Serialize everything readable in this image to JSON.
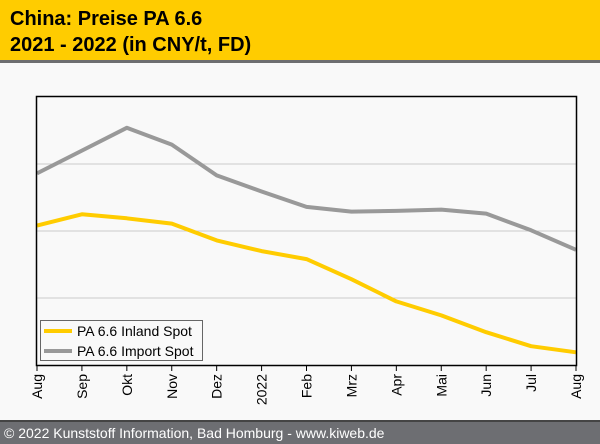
{
  "header": {
    "title_line1": "China: Preise PA 6.6",
    "title_line2": "2021 - 2022 (in CNY/t, FD)"
  },
  "footer": {
    "copyright": "© 2022 Kunststoff Information, Bad Homburg - www.kiweb.de"
  },
  "colors": {
    "header_bg": "#ffcc00",
    "inland": "#ffcc00",
    "import": "#999999",
    "footer_bg": "#6d6e72"
  },
  "chart_data": {
    "type": "line",
    "title": "China: Preise PA 6.6 2021 - 2022 (in CNY/t, FD)",
    "xlabel": "",
    "ylabel": "",
    "y_tick_labels_shown": false,
    "y_units": "relative (gridline bands, unlabeled axis)",
    "ylim": [
      0,
      4
    ],
    "grid": "horizontal",
    "legend_position": "bottom-left",
    "categories": [
      "Aug",
      "Sep",
      "Okt",
      "Nov",
      "Dez",
      "2022",
      "Feb",
      "Mrz",
      "Apr",
      "Mai",
      "Jun",
      "Jul",
      "Aug"
    ],
    "series": [
      {
        "name": "PA 6.6 Inland Spot",
        "color": "#ffcc00",
        "values": [
          2.08,
          2.25,
          2.19,
          2.11,
          1.86,
          1.7,
          1.58,
          1.28,
          0.95,
          0.74,
          0.49,
          0.28,
          0.19
        ]
      },
      {
        "name": "PA 6.6 Import Spot",
        "color": "#999999",
        "values": [
          2.86,
          3.2,
          3.54,
          3.29,
          2.83,
          2.59,
          2.36,
          2.29,
          2.3,
          2.32,
          2.26,
          2.01,
          1.72
        ]
      }
    ]
  }
}
